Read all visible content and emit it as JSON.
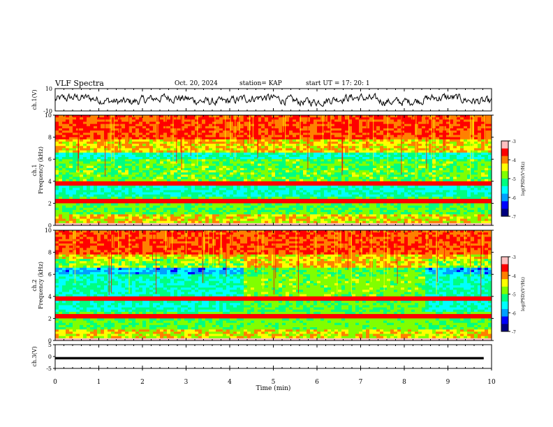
{
  "header": {
    "title": "VLF Spectra",
    "date": "Oct. 20, 2024",
    "station_label": "station= KAP",
    "start_label": "start  UT =   17: 20: 1"
  },
  "colors": {
    "trace": "#000000",
    "background": "#ffffff",
    "colormap": [
      "#000080",
      "#0000ff",
      "#00a0ff",
      "#00ffff",
      "#00ff80",
      "#80ff00",
      "#ffff00",
      "#ff8000",
      "#ff0000",
      "#ffc0c0"
    ]
  },
  "chart_data": [
    {
      "type": "line",
      "panel": "ch1-waveform",
      "ylabel": "ch.1(V)",
      "ylim": [
        -10,
        10
      ],
      "yticks": [
        "10",
        "-10"
      ],
      "xlim": [
        0,
        10
      ],
      "description_series": "noisy waveform oscillating roughly between -5 and +5 V"
    },
    {
      "type": "heatmap",
      "panel": "ch1-spectrogram",
      "ylabel_line1": "ch.1",
      "ylabel_line2": "Frequency (kHz)",
      "ylim": [
        0,
        10
      ],
      "yticks": [
        "0",
        "2",
        "4",
        "6",
        "8",
        "10"
      ],
      "xlim": [
        0,
        10
      ],
      "colorbar": {
        "label": "log(PSD)(V²/Hz)",
        "range": [
          -7,
          -3
        ],
        "ticks": [
          "-3",
          "-4",
          "-5",
          "-6",
          "-7"
        ]
      },
      "transitions_min": []
    },
    {
      "type": "heatmap",
      "panel": "ch2-spectrogram",
      "ylabel_line1": "ch.2",
      "ylabel_line2": "Frequency (kHz)",
      "ylim": [
        0,
        10
      ],
      "yticks": [
        "0",
        "2",
        "4",
        "6",
        "8",
        "10"
      ],
      "xlim": [
        0,
        10
      ],
      "colorbar": {
        "label": "log(PSD)(V²/Hz)",
        "range": [
          -7,
          -3
        ],
        "ticks": [
          "-3",
          "-4",
          "-5",
          "-6",
          "-7"
        ]
      },
      "transitions_min": [
        4.35,
        8.5
      ]
    },
    {
      "type": "line",
      "panel": "ch3-waveform",
      "ylabel": "ch.3(V)",
      "ylim": [
        -5,
        5
      ],
      "yticks": [
        "5",
        "0",
        "-5"
      ],
      "xlim": [
        0,
        10
      ],
      "value_range": [
        -1.2,
        -0.2
      ],
      "xlabel": "Time (min)",
      "xticks": [
        "0",
        "1",
        "2",
        "3",
        "4",
        "5",
        "6",
        "7",
        "8",
        "9",
        "10"
      ]
    }
  ]
}
